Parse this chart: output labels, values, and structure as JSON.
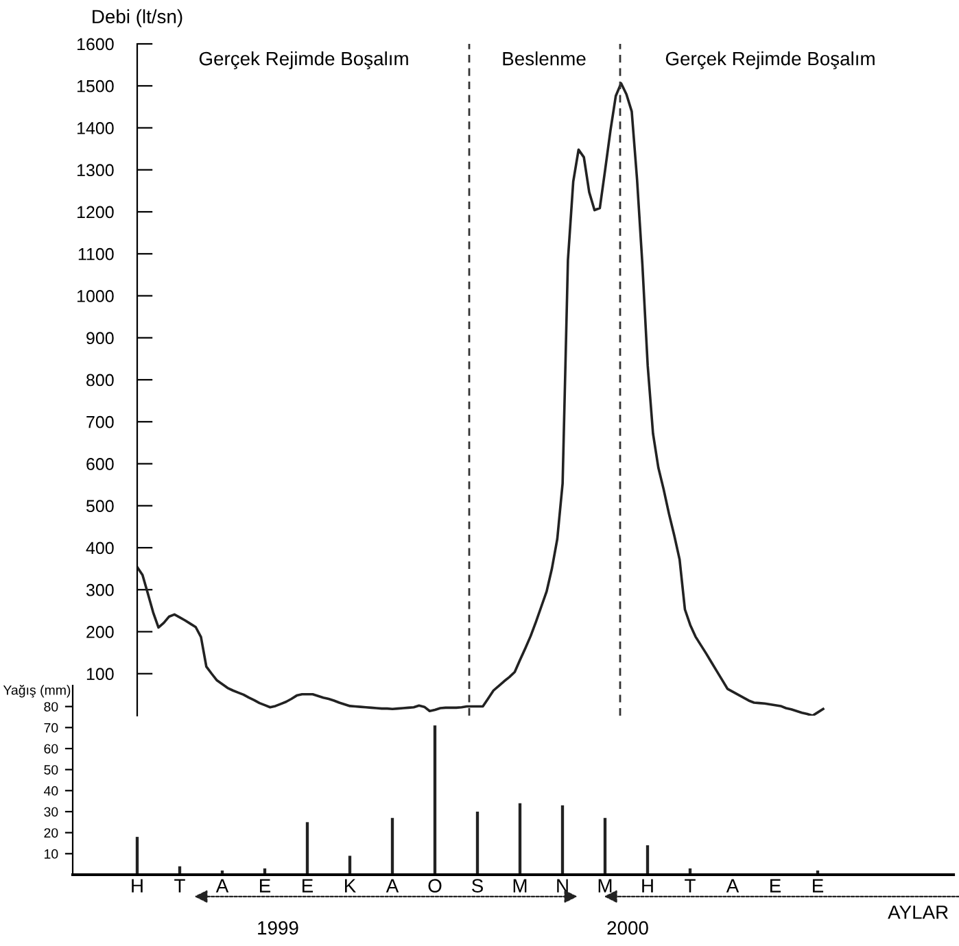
{
  "chart_data": [
    {
      "type": "line",
      "ylabel": "Debi (lt/sn)",
      "tick_labels": "y",
      "ylim": [
        0,
        1600
      ],
      "yticks": [
        100,
        200,
        300,
        400,
        500,
        600,
        700,
        800,
        900,
        1000,
        1100,
        1200,
        1300,
        1400,
        1500,
        1600
      ],
      "categories": [
        null,
        null,
        null,
        null,
        null,
        null,
        null,
        null,
        null,
        null,
        null,
        null,
        null,
        null,
        null,
        null,
        null,
        null,
        null,
        null,
        null,
        null,
        null,
        null,
        null,
        null,
        null,
        null,
        null,
        null,
        null,
        null,
        null,
        null,
        null,
        null,
        null,
        null,
        null,
        null,
        null,
        null,
        null,
        null,
        null,
        null,
        null,
        null,
        null,
        null,
        null,
        null,
        null,
        null,
        null,
        null,
        null,
        null,
        null,
        null,
        null,
        null,
        null,
        null,
        null,
        null,
        null,
        null,
        null,
        null,
        null,
        null,
        null,
        null,
        null,
        null,
        null,
        null,
        null,
        null,
        null,
        null,
        null,
        null,
        null,
        null,
        null,
        null,
        null,
        null,
        null,
        null,
        null,
        null,
        null,
        null,
        null,
        null,
        null,
        null,
        null,
        null,
        null,
        null,
        null,
        null,
        null,
        null,
        null,
        null,
        null,
        null,
        null,
        null,
        null,
        null,
        null,
        null,
        null,
        null,
        null,
        null,
        null,
        null,
        null,
        null,
        null,
        null,
        null,
        null
      ],
      "series": [
        {
          "color": "#222222",
          "values": [
            354,
            335,
            291,
            246,
            210,
            221,
            236,
            241,
            234,
            227,
            219,
            211,
            187,
            117,
            100,
            84,
            75,
            66,
            60,
            55,
            50,
            43,
            37,
            30,
            25,
            20,
            23,
            28,
            33,
            40,
            48,
            51,
            51,
            51,
            47,
            43,
            40,
            36,
            31,
            27,
            23,
            22,
            21,
            20,
            19,
            18,
            17,
            17,
            16,
            17,
            18,
            19,
            20,
            24,
            21,
            11,
            14,
            18,
            19,
            19,
            19,
            20,
            22,
            22,
            22,
            22,
            41,
            60,
            71,
            82,
            92,
            104,
            133,
            161,
            190,
            224,
            260,
            296,
            351,
            421,
            553,
            1085,
            1272,
            1348,
            1330,
            1247,
            1204,
            1209,
            1300,
            1394,
            1476,
            1506,
            1480,
            1439,
            1277,
            1075,
            834,
            672,
            591,
            539,
            481,
            429,
            372,
            253,
            216,
            188,
            168,
            148,
            127,
            106,
            85,
            64,
            57,
            50,
            43,
            36,
            31,
            30,
            29,
            27,
            25,
            23,
            18,
            15,
            11,
            7,
            4,
            0,
            8,
            16
          ]
        }
      ],
      "annotations": [
        "Gerçek Rejimde Boşalım",
        "Beslenme",
        "Gerçek Rejimde Boşalım"
      ],
      "grid": false,
      "legend": false
    },
    {
      "type": "bar",
      "xlabel": "AYLAR",
      "ylabel": "Yağış (mm)",
      "categories": [
        "H",
        "T",
        "A",
        "E",
        "E",
        "K",
        "A",
        "O",
        "S",
        "M",
        "N",
        "M",
        "H",
        "T",
        "A",
        "E",
        "E"
      ],
      "ylim": [
        0,
        90
      ],
      "yticks": [
        10,
        20,
        30,
        40,
        50,
        60,
        70,
        80
      ],
      "series": [
        {
          "color": "#222222",
          "values": [
            18,
            4,
            2,
            3,
            25,
            9,
            27,
            71,
            30,
            34,
            33,
            27,
            14,
            3,
            null,
            null,
            2
          ]
        }
      ],
      "annotations": [
        "1999",
        "2000"
      ],
      "grid": false,
      "legend": false
    }
  ]
}
